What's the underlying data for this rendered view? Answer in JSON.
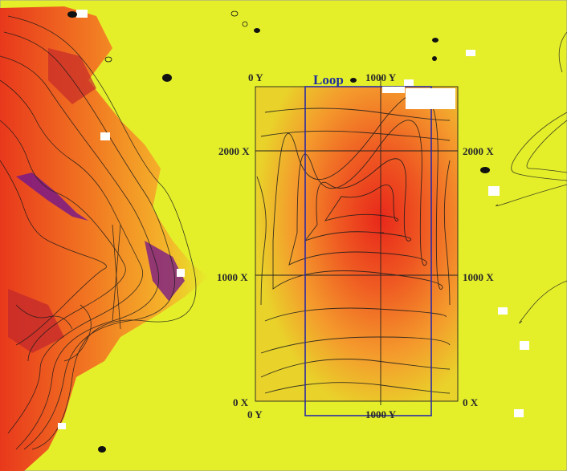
{
  "map": {
    "colors": {
      "background": "#e4ef2a",
      "hot": "#e8381c",
      "orange": "#f59a2a",
      "magenta": "#7a1a86",
      "contour": "#1a1a1a",
      "loop_box": "#2a2aa6"
    },
    "loop_label": "Loop",
    "axis_labels": {
      "y0_top": "0 Y",
      "y1000_top": "1000 Y",
      "y0_bottom": "0 Y",
      "y1000_bottom": "1000 Y",
      "x2000_left": "2000 X",
      "x2000_right": "2000 X",
      "x1000_left": "1000 X",
      "x1000_right": "1000 X",
      "x0_left": "0 X",
      "x0_right": "0 X"
    }
  }
}
